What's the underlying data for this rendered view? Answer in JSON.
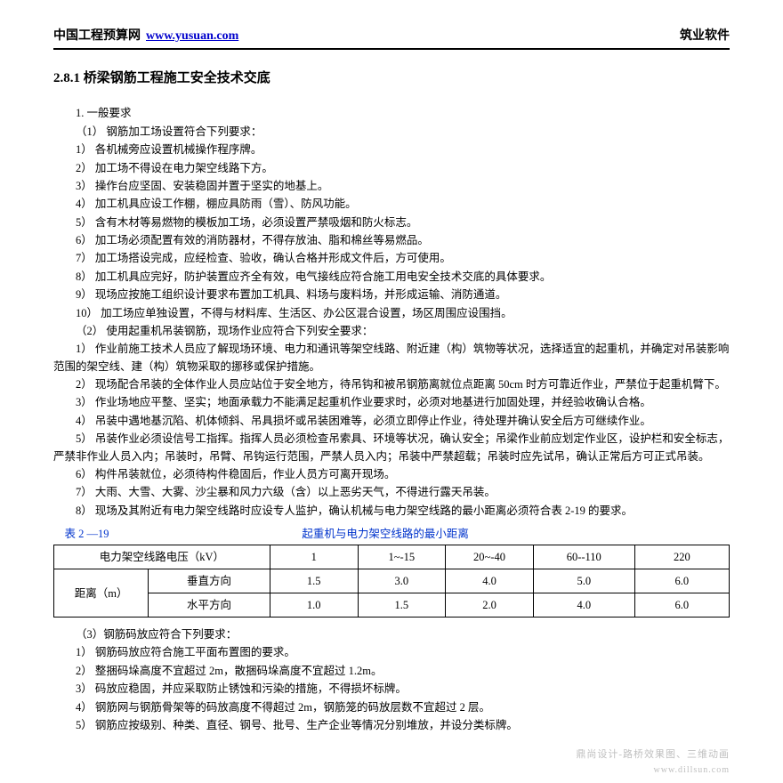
{
  "header": {
    "site_name": "中国工程预算网",
    "site_url": "www.yusuan.com",
    "right": "筑业软件"
  },
  "title": "2.8.1 桥梁钢筋工程施工安全技术交底",
  "body": [
    "1.  一般要求",
    "（1）  钢筋加工场设置符合下列要求：",
    "1）  各机械旁应设置机械操作程序牌。",
    "2）  加工场不得设在电力架空线路下方。",
    "3）  操作台应坚固、安装稳固并置于坚实的地基上。",
    "4）  加工机具应设工作棚，棚应具防雨（雪）、防风功能。",
    "5）  含有木材等易燃物的模板加工场，必须设置严禁吸烟和防火标志。",
    "6）  加工场必须配置有效的消防器材，不得存放油、脂和棉丝等易燃品。",
    "7）  加工场搭设完成，应经检查、验收，确认合格并形成文件后，方可使用。",
    "8）  加工机具应完好，防护装置应齐全有效，电气接线应符合施工用电安全技术交底的具体要求。",
    "9）  现场应按施工组织设计要求布置加工机具、料场与废料场，并形成运输、消防通道。",
    "10）  加工场应单独设置，不得与材料库、生活区、办公区混合设置，场区周围应设围挡。",
    "（2）  使用起重机吊装钢筋，现场作业应符合下列安全要求：",
    "1）  作业前施工技术人员应了解现场环境、电力和通讯等架空线路、附近建（构）筑物等状况，选择适宜的起重机，并确定对吊装影响范围的架空线、建（构）筑物采取的挪移或保护措施。",
    "2）  现场配合吊装的全体作业人员应站位于安全地方，待吊钩和被吊钢筋离就位点距离 50cm 时方可靠近作业，严禁位于起重机臂下。",
    "3）  作业场地应平整、坚实；地面承载力不能满足起重机作业要求时，必须对地基进行加固处理，并经验收确认合格。",
    "4）  吊装中遇地基沉陷、机体倾斜、吊具损坏或吊装困难等，必须立即停止作业，待处理并确认安全后方可继续作业。",
    "5）  吊装作业必须设信号工指挥。指挥人员必须检查吊索具、环境等状况，确认安全；吊梁作业前应划定作业区，设护栏和安全标志，严禁非作业人员入内；吊装时，吊臂、吊钩运行范围，严禁人员入内；吊装中严禁超载；吊装时应先试吊，确认正常后方可正式吊装。",
    "6）  构件吊装就位，必须待构件稳固后，作业人员方可离开现场。",
    "7）  大雨、大雪、大雾、沙尘暴和风力六级（含）以上恶劣天气，不得进行露天吊装。",
    "8）  现场及其附近有电力架空线路时应设专人监护，确认机械与电力架空线路的最小距离必须符合表 2-19 的要求。"
  ],
  "table": {
    "caption_left": "表 2 —19",
    "caption_right": "起重机与电力架空线路的最小距离",
    "header": [
      "电力架空线路电压（kV）",
      "1",
      "1~-15",
      "20~-40",
      "60--110",
      "220"
    ],
    "row_group": "距离（m）",
    "rows": [
      {
        "label": "垂直方向",
        "vals": [
          "1.5",
          "3.0",
          "4.0",
          "5.0",
          "6.0"
        ]
      },
      {
        "label": "水平方向",
        "vals": [
          "1.0",
          "1.5",
          "2.0",
          "4.0",
          "6.0"
        ]
      }
    ],
    "col_widths": [
      "14%",
      "18%",
      "13%",
      "13%",
      "13%",
      "15%",
      "14%"
    ]
  },
  "body2": [
    "（3）钢筋码放应符合下列要求：",
    "1）  钢筋码放应符合施工平面布置图的要求。",
    "2）  整捆码垛高度不宜超过 2m，散捆码垛高度不宜超过 1.2m。",
    "3）  码放应稳固，并应采取防止锈蚀和污染的措施，不得损坏标牌。",
    "4）  钢筋网与钢筋骨架等的码放高度不得超过 2m，钢筋笼的码放层数不宜超过 2 层。",
    "5）  钢筋应按级别、种类、直径、钢号、批号、生产企业等情况分别堆放，并设分类标牌。"
  ],
  "watermark": {
    "line1": "鼎尚设计-路桥效果图、三维动画",
    "line2": "www.dillsun.com"
  },
  "colors": {
    "link": "#0000cc",
    "caption": "#0033cc",
    "wm": "#bfbfbf"
  }
}
